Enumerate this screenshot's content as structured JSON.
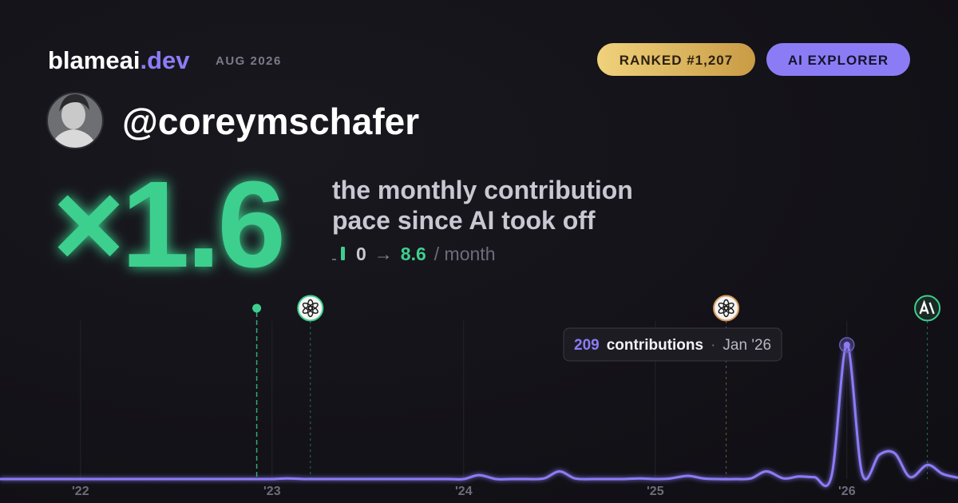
{
  "brand": {
    "name": "blameai",
    "tld": ".dev",
    "period": "AUG 2026"
  },
  "badges": {
    "rank": "RANKED #1,207",
    "tier": "AI EXPLORER"
  },
  "profile": {
    "handle": "@coreymschafer"
  },
  "headline": {
    "multiplier": "×1.6",
    "line1": "the monthly contribution",
    "line2": "pace since AI took off"
  },
  "pace": {
    "from": "0",
    "arrow": "→",
    "to": "8.6",
    "unit": "/ month"
  },
  "chart_data": {
    "type": "line",
    "x": [
      2021.58,
      2021.67,
      2021.75,
      2021.83,
      2021.92,
      2022,
      2022.08,
      2022.17,
      2022.25,
      2022.33,
      2022.42,
      2022.5,
      2022.58,
      2022.67,
      2022.75,
      2022.83,
      2022.92,
      2023,
      2023.08,
      2023.17,
      2023.25,
      2023.33,
      2023.42,
      2023.5,
      2023.58,
      2023.67,
      2023.75,
      2023.83,
      2023.92,
      2024,
      2024.08,
      2024.17,
      2024.25,
      2024.33,
      2024.42,
      2024.5,
      2024.58,
      2024.67,
      2024.75,
      2024.83,
      2024.92,
      2025,
      2025.08,
      2025.17,
      2025.25,
      2025.33,
      2025.42,
      2025.5,
      2025.58,
      2025.67,
      2025.75,
      2025.83,
      2025.92,
      2026,
      2026.08,
      2026.17,
      2026.25,
      2026.33,
      2026.42,
      2026.5,
      2026.58
    ],
    "series": [
      {
        "name": "contributions",
        "color": "#8b7cf6",
        "values": [
          0,
          0,
          0,
          0,
          0,
          0,
          0,
          0,
          0,
          0,
          0,
          0,
          0,
          0,
          0,
          0,
          0,
          0,
          1,
          0,
          0,
          0,
          0,
          0,
          0,
          0,
          0,
          0,
          0,
          0,
          6,
          0,
          0,
          0,
          1,
          12,
          1,
          0,
          0,
          0,
          1,
          0,
          1,
          5,
          1,
          0,
          0,
          1,
          12,
          1,
          4,
          3,
          5,
          209,
          8,
          38,
          40,
          3,
          22,
          8,
          2
        ]
      }
    ],
    "xlim": [
      2021.58,
      2026.58
    ],
    "xticks": [
      {
        "value": 2022,
        "label": "'22"
      },
      {
        "value": 2023,
        "label": "'23"
      },
      {
        "value": 2024,
        "label": "'24"
      },
      {
        "value": 2025,
        "label": "'25"
      },
      {
        "value": 2026,
        "label": "'26"
      }
    ],
    "ylim": [
      0,
      260
    ],
    "grid": true,
    "events": [
      {
        "x": 2022.92,
        "color": "#3ecf8e",
        "style": "dot"
      },
      {
        "x": 2023.2,
        "color": "#3ecf8e",
        "style": "openai"
      },
      {
        "x": 2025.37,
        "color": "#d99a5b",
        "style": "openai"
      },
      {
        "x": 2026.42,
        "color": "#3ecf8e",
        "style": "anthropic"
      }
    ],
    "tooltip": {
      "index": 53,
      "label": "contributions",
      "sep": "·",
      "date": "Jan '26"
    }
  }
}
